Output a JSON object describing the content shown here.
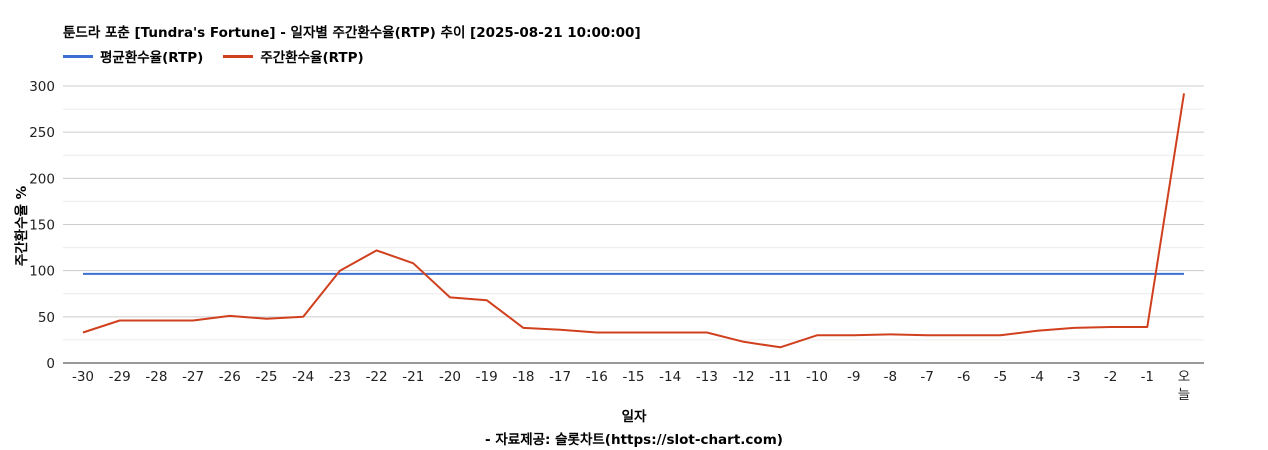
{
  "chart_data": {
    "type": "line",
    "title": "툰드라 포춘 [Tundra's Fortune] - 일자별 주간환수율(RTP) 추이 [2025-08-21 10:00:00]",
    "xlabel": "일자",
    "ylabel": "주간환수율 %",
    "source": "- 자료제공: 슬롯차트(https://slot-chart.com)",
    "categories": [
      "-30",
      "-29",
      "-28",
      "-27",
      "-26",
      "-25",
      "-24",
      "-23",
      "-22",
      "-21",
      "-20",
      "-19",
      "-18",
      "-17",
      "-16",
      "-15",
      "-14",
      "-13",
      "-12",
      "-11",
      "-10",
      "-9",
      "-8",
      "-7",
      "-6",
      "-5",
      "-4",
      "-3",
      "-2",
      "-1",
      "오늘"
    ],
    "ylim": [
      0,
      300
    ],
    "yticks": [
      0,
      50,
      100,
      150,
      200,
      250,
      300
    ],
    "grid": true,
    "legend_position": "top-left",
    "series": [
      {
        "name": "평균환수율(RTP)",
        "color": "#3c6fd1",
        "values": [
          96.5,
          96.5,
          96.5,
          96.5,
          96.5,
          96.5,
          96.5,
          96.5,
          96.5,
          96.5,
          96.5,
          96.5,
          96.5,
          96.5,
          96.5,
          96.5,
          96.5,
          96.5,
          96.5,
          96.5,
          96.5,
          96.5,
          96.5,
          96.5,
          96.5,
          96.5,
          96.5,
          96.5,
          96.5,
          96.5,
          96.5
        ]
      },
      {
        "name": "주간환수율(RTP)",
        "color": "#d0401e",
        "values": [
          33,
          46,
          46,
          46,
          51,
          48,
          50,
          100,
          122,
          108,
          71,
          68,
          38,
          36,
          33,
          33,
          33,
          33,
          23,
          17,
          30,
          30,
          31,
          30,
          30,
          30,
          35,
          38,
          39,
          39,
          292
        ]
      }
    ]
  }
}
